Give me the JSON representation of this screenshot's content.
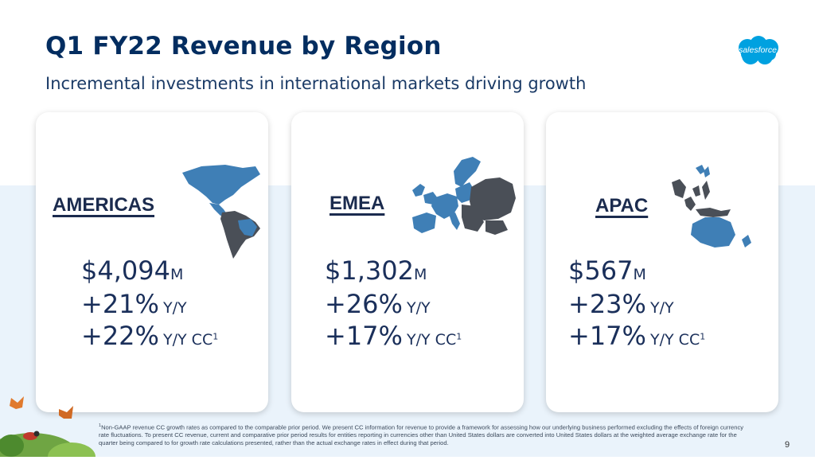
{
  "slide": {
    "title": "Q1 FY22 Revenue by Region",
    "subtitle": "Incremental investments in international markets driving growth",
    "logo_text": "salesforce",
    "page_number": "9",
    "colors": {
      "navy": "#032d60",
      "map_blue": "#3f7fb6",
      "map_gray": "#4a4f57",
      "band": "#eaf3fb",
      "logo": "#00a1e0"
    }
  },
  "regions": [
    {
      "name": "AMERICAS",
      "revenue": "$4,094",
      "revenue_unit": "M",
      "yy": "+21%",
      "yy_label": "Y/Y",
      "cc": "+22%",
      "cc_label": "Y/Y CC",
      "cc_sup": "1"
    },
    {
      "name": "EMEA",
      "revenue": "$1,302",
      "revenue_unit": "M",
      "yy": "+26%",
      "yy_label": "Y/Y",
      "cc": "+17%",
      "cc_label": "Y/Y CC",
      "cc_sup": "1"
    },
    {
      "name": "APAC",
      "revenue": "$567",
      "revenue_unit": "M",
      "yy": "+23%",
      "yy_label": "Y/Y",
      "cc": "+17%",
      "cc_label": "Y/Y CC",
      "cc_sup": "1"
    }
  ],
  "footnote": {
    "marker": "1",
    "text": "Non-GAAP revenue CC growth rates as compared to the comparable prior period. We present CC information for revenue to provide a framework for assessing how our underlying business performed excluding the effects of foreign currency rate fluctuations. To present CC revenue, current and comparative prior period results for entities reporting in currencies other than United States dollars are converted into United States dollars at the weighted average exchange rate for the quarter being compared to for growth rate calculations presented, rather than the actual exchange rates in effect during that period."
  }
}
